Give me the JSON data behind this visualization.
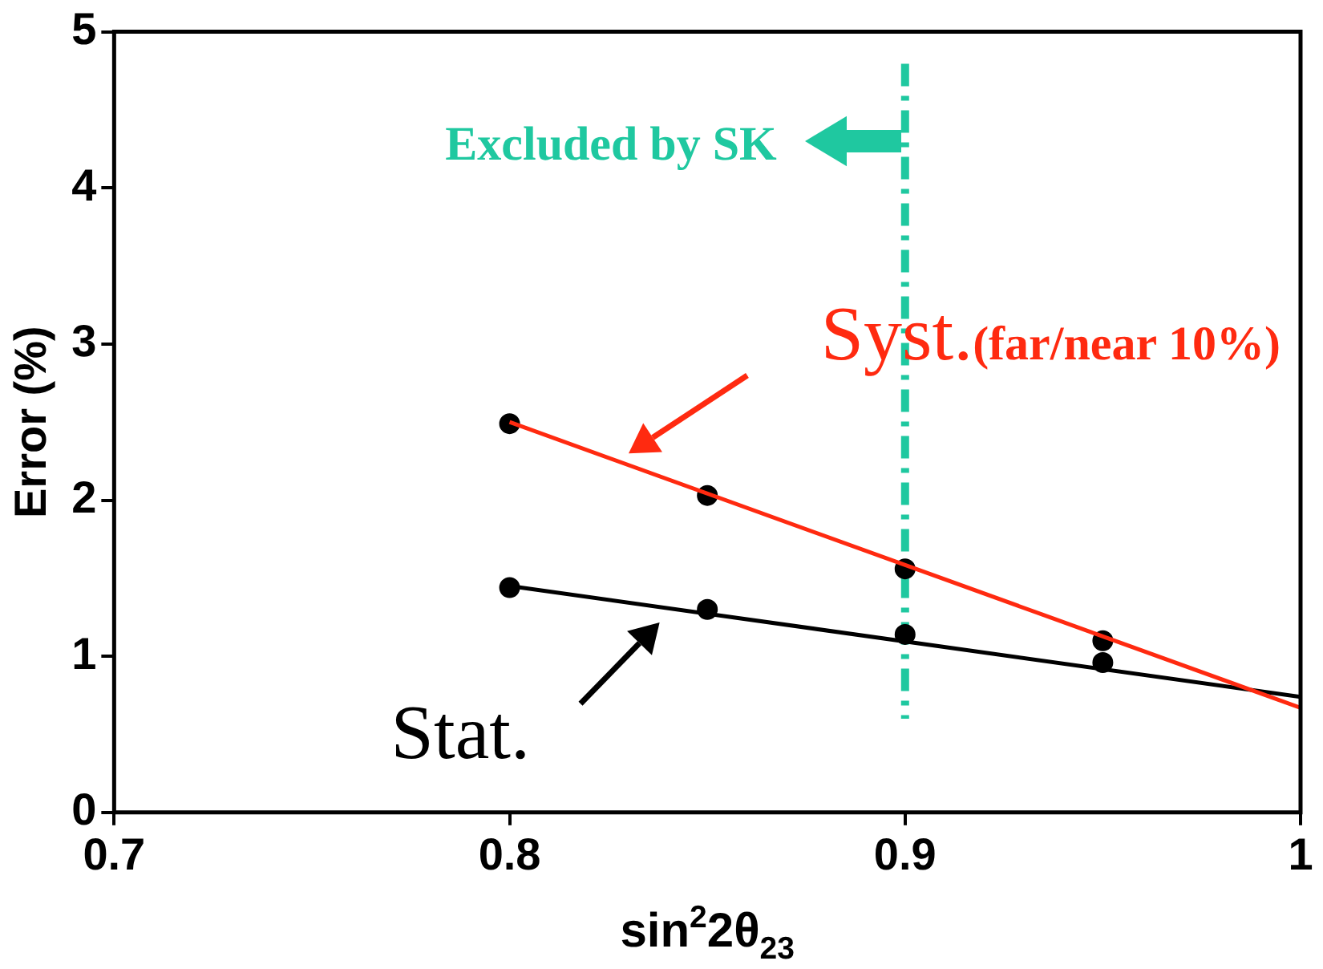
{
  "chart_data": {
    "type": "line",
    "xlabel": "sin$^{2}$2θ$_{23}$",
    "ylabel": "Error (%)",
    "xlim": [
      0.7,
      1
    ],
    "xticks": [
      0.7,
      0.8,
      0.9,
      {
        "value": 1,
        "label": "1"
      }
    ],
    "ylim": [
      0,
      5
    ],
    "yticks": [
      0,
      1,
      2,
      3,
      4,
      5
    ],
    "grid": false,
    "legend": false,
    "series": [
      {
        "name": "Syst.(far/near 10%)",
        "color": "#ff2a10",
        "x": [
          0.8,
          1.0
        ],
        "values": [
          2.5,
          0.67
        ],
        "marker": "none"
      },
      {
        "name": "Stat.",
        "color": "#000000",
        "x": [
          0.8,
          1.0
        ],
        "values": [
          1.45,
          0.74
        ],
        "marker": "none"
      },
      {
        "type": "scatter",
        "color": "#000000",
        "x": [
          0.8,
          0.85,
          0.9,
          0.95
        ],
        "values": [
          2.49,
          2.03,
          1.56,
          1.1
        ],
        "marker": "circle"
      },
      {
        "type": "scatter",
        "color": "#000000",
        "x": [
          0.8,
          0.85,
          0.9,
          0.95
        ],
        "values": [
          1.44,
          1.3,
          1.14,
          0.96
        ],
        "marker": "circle"
      }
    ],
    "ref_lines": [
      {
        "axis": "x",
        "value": 0.9,
        "label": "Excluded by SK",
        "color": "#1fc8a0",
        "line_style": "dashdot"
      }
    ]
  }
}
